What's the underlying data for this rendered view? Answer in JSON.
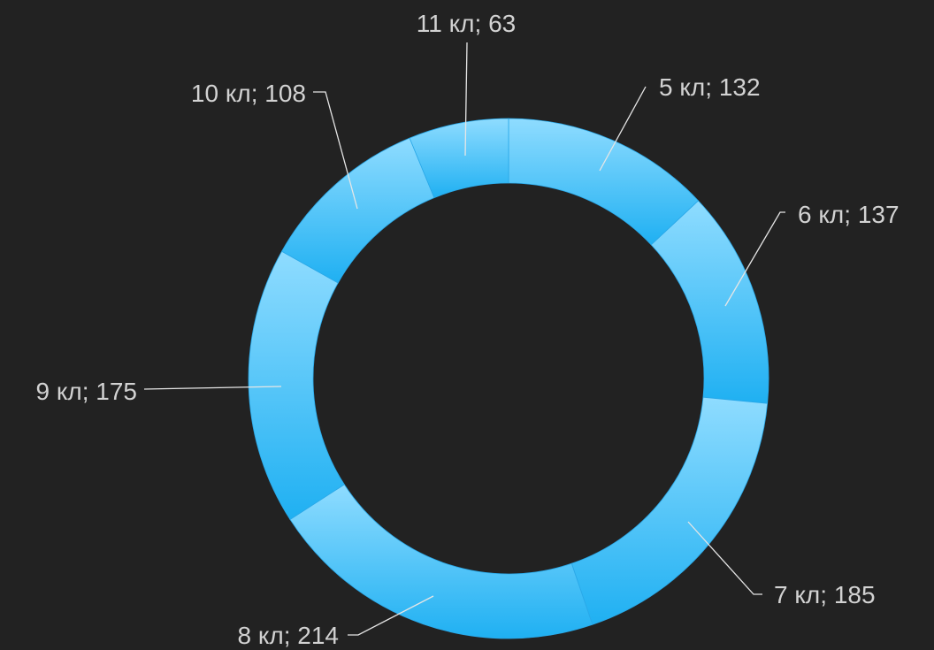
{
  "chart_data": {
    "type": "pie",
    "variant": "donut",
    "title": "",
    "legend": "none",
    "slices": [
      {
        "label": "5 кл; 132",
        "category": "5 кл",
        "value": 132
      },
      {
        "label": "6 кл; 137",
        "category": "6 кл",
        "value": 137
      },
      {
        "label": "7 кл; 185",
        "category": "7 кл",
        "value": 185
      },
      {
        "label": "8 кл; 214",
        "category": "8 кл",
        "value": 214
      },
      {
        "label": "9 кл; 175",
        "category": "9 кл",
        "value": 175
      },
      {
        "label": "10 кл; 108",
        "category": "10 кл",
        "value": 108
      },
      {
        "label": "11 кл; 63",
        "category": "11 кл",
        "value": 63
      }
    ],
    "colors": {
      "background": "#222222",
      "slice_light": "#8fdcff",
      "slice_dark": "#1fb0f2",
      "label_text": "#d2d2d2",
      "leader_line": "#e6e6e6"
    }
  }
}
